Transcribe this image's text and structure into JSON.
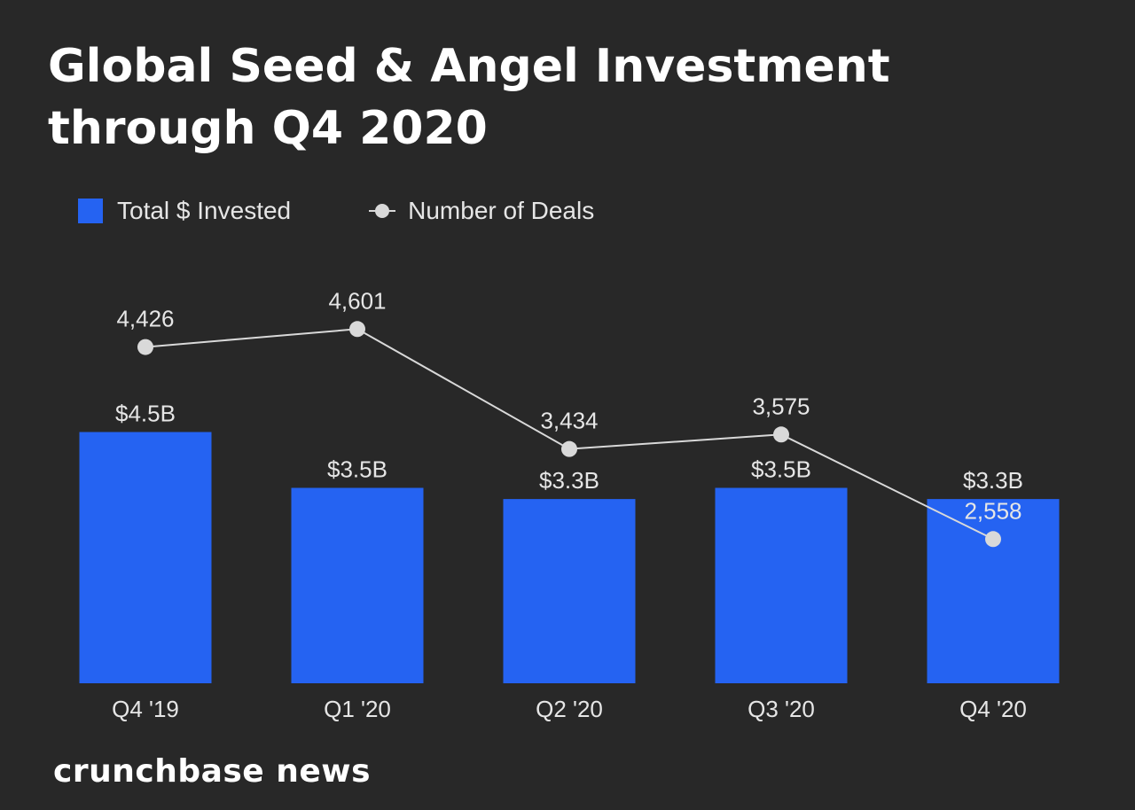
{
  "title": "Global Seed & Angel Investment through Q4 2020",
  "legend": {
    "bar_label": "Total $ Invested",
    "line_label": "Number of Deals"
  },
  "colors": {
    "background": "#282828",
    "bar": "#2563f2",
    "line": "#d9d9d9",
    "text": "#ffffff",
    "label": "#e6e6e6"
  },
  "chart_data": {
    "type": "bar",
    "title": "Global Seed & Angel Investment through Q4 2020",
    "categories": [
      "Q4 '19",
      "Q1 '20",
      "Q2 '20",
      "Q3 '20",
      "Q4 '20"
    ],
    "series": [
      {
        "name": "Total $ Invested",
        "type": "bar",
        "values": [
          4.5,
          3.5,
          3.3,
          3.5,
          3.3
        ],
        "unit": "$B",
        "labels": [
          "$4.5B",
          "$3.5B",
          "$3.3B",
          "$3.5B",
          "$3.3B"
        ]
      },
      {
        "name": "Number of Deals",
        "type": "line",
        "values": [
          4426,
          4601,
          3434,
          3575,
          2558
        ],
        "labels": [
          "4,426",
          "4,601",
          "3,434",
          "3,575",
          "2,558"
        ]
      }
    ],
    "xlabel": "",
    "ylabel": "",
    "legend_position": "top-left",
    "grid": false
  },
  "footer": {
    "brand": "crunchbase news"
  }
}
